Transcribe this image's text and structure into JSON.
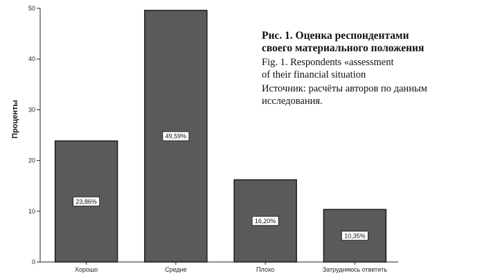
{
  "chart_data": {
    "type": "bar",
    "categories": [
      "Хорошо",
      "Средне",
      "Плохо",
      "Затрудняюсь ответить"
    ],
    "values": [
      23.86,
      49.59,
      16.2,
      10.35
    ],
    "data_labels": [
      "23,86%",
      "49,59%",
      "16,20%",
      "10,35%"
    ],
    "ylabel": "Проценты",
    "ylim": [
      0,
      50
    ],
    "yticks": [
      0,
      10,
      20,
      30,
      40,
      50
    ],
    "grid": false,
    "colors": {
      "bar_fill": "#5a5a5a",
      "bar_stroke": "#1a1a1a",
      "label_box": "#ffffff"
    }
  },
  "caption": {
    "title_lines": [
      "Рис. 1. Оценка респондентами",
      "своего материального положения"
    ],
    "en_lines": [
      "Fig. 1. Respondents «assessment",
      "of their financial situation"
    ],
    "source_lines": [
      "Источник: расчёты авторов по данным",
      "исследования."
    ]
  }
}
